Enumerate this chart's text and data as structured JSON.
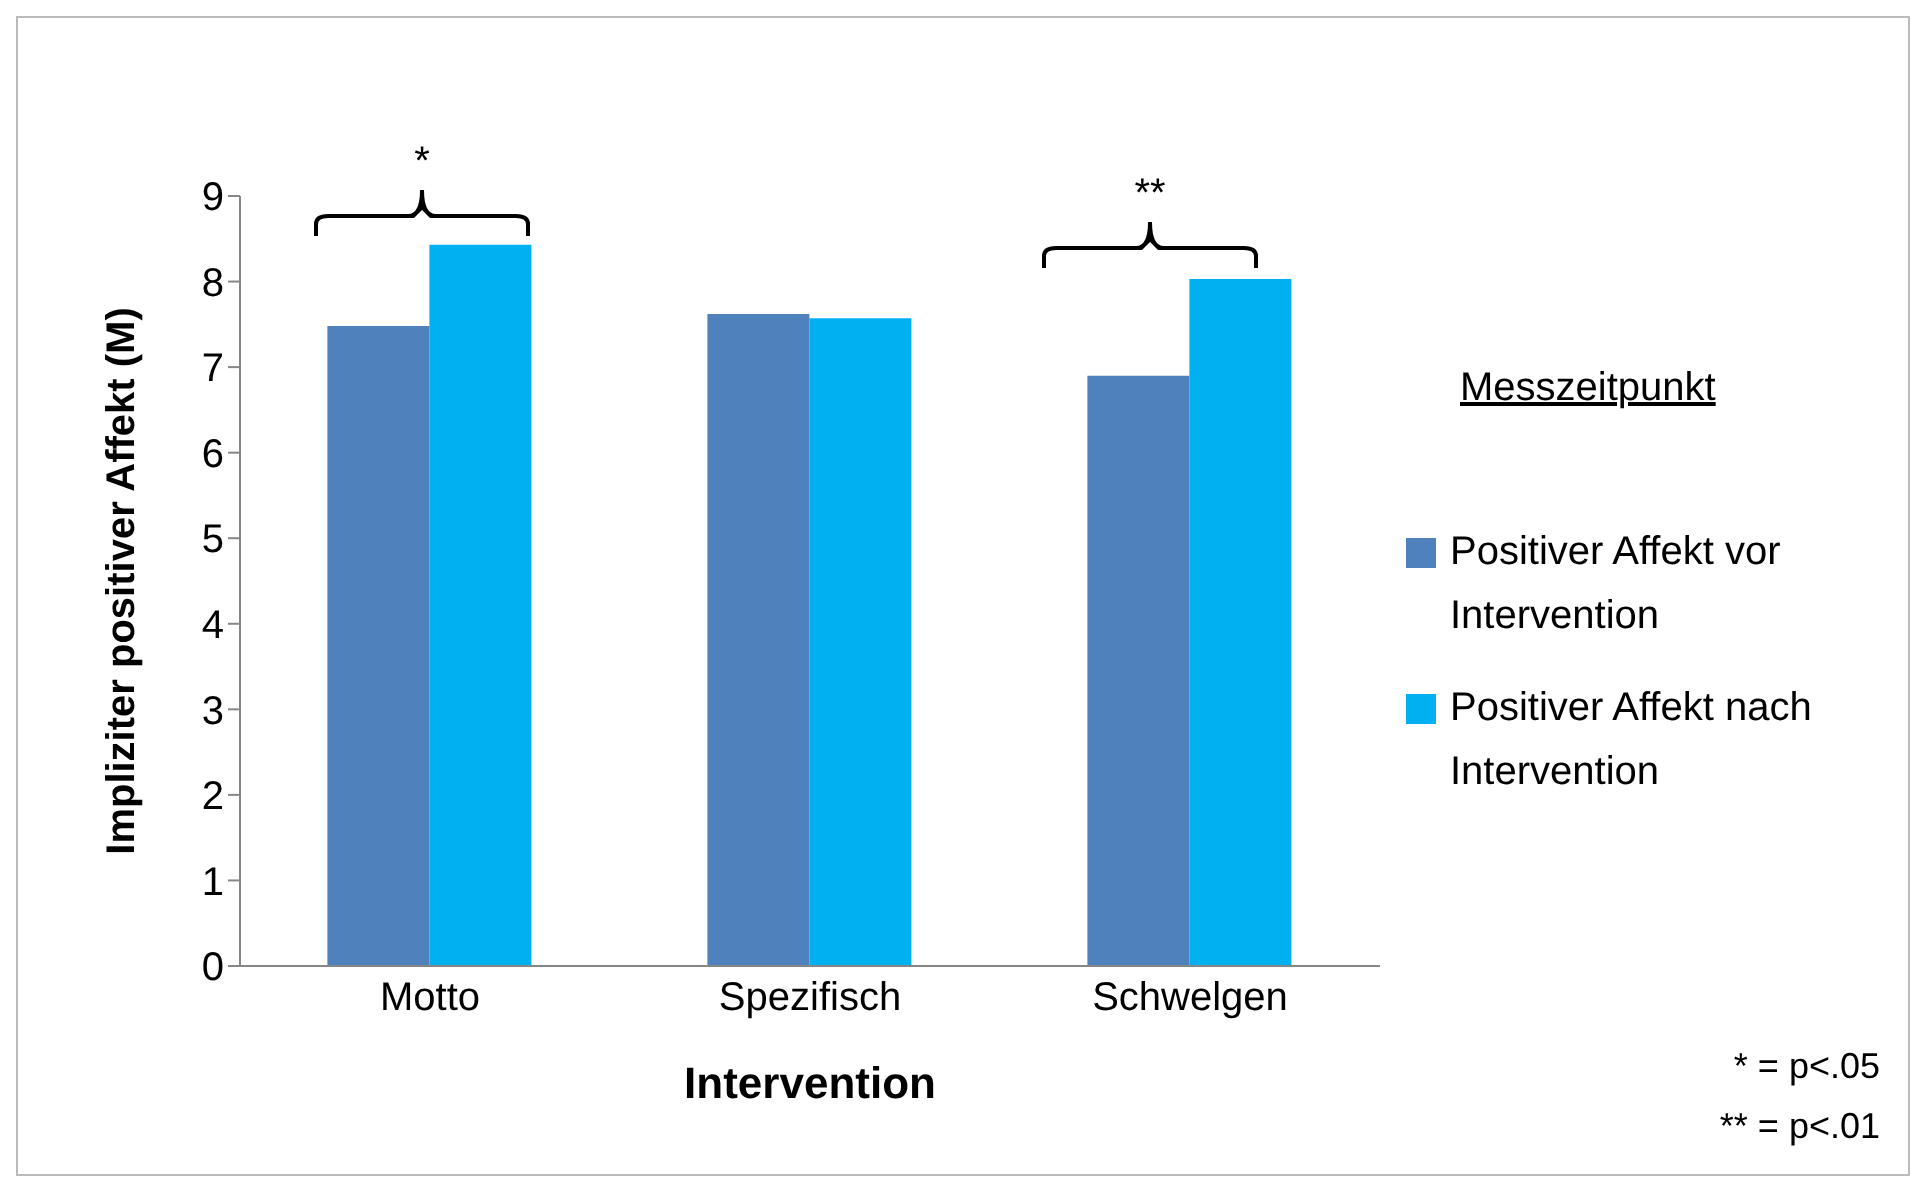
{
  "chart_data": {
    "type": "bar",
    "xlabel": "Intervention",
    "ylabel": "Impliziter positiver Affekt (M)",
    "legend_title": "Messzeitpunkt",
    "categories": [
      "Motto",
      "Spezifisch",
      "Schwelgen"
    ],
    "series": [
      {
        "name": "Positiver Affekt vor Intervention",
        "color": "#4f81bd",
        "values": [
          7.48,
          7.62,
          6.9
        ]
      },
      {
        "name": "Positiver Affekt nach Intervention",
        "color": "#00b0f0",
        "values": [
          8.43,
          7.57,
          8.03
        ]
      }
    ],
    "ylim": [
      0,
      9
    ],
    "yticks": [
      0,
      1,
      2,
      3,
      4,
      5,
      6,
      7,
      8,
      9
    ],
    "grid": false,
    "legend": "right",
    "annotations": [
      "*",
      "**",
      "* = p<.05",
      "** = p<.01"
    ]
  }
}
